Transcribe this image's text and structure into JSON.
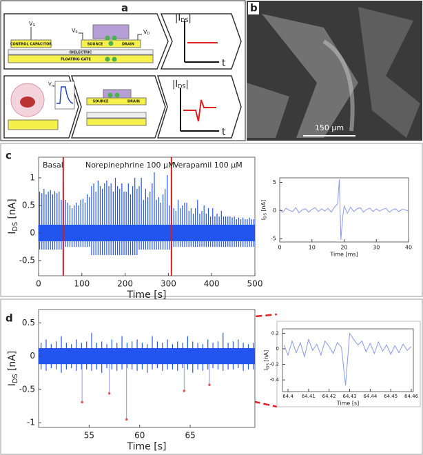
{
  "figure": {
    "panel_labels": [
      "a",
      "b",
      "c",
      "d"
    ],
    "diagram": {
      "vg": {
        "v": "V",
        "sub": "G"
      },
      "vs": {
        "v": "V",
        "sub": "S"
      },
      "vd": {
        "v": "V",
        "sub": "D"
      },
      "vm": {
        "v": "V",
        "sub": "m"
      },
      "control_capacitor": "CONTROL CAPACITOR",
      "dielectric": "DIELECTRIC",
      "floating_gate": "FLOATING GATE",
      "source": "SOURCE",
      "drain": "DRAIN",
      "ids": {
        "v": "|I",
        "sub": "DS",
        "end": "|"
      },
      "t": "t"
    },
    "scale_bar": "150 µm"
  },
  "chart_data": [
    {
      "type": "range",
      "color": "#2255ee",
      "x": [
        2.5,
        7.5,
        12.5,
        17.5,
        22.5,
        27.5,
        32.5,
        37.5,
        42.5,
        47.5,
        52.5,
        57.5,
        62.5,
        67.5,
        72.5,
        77.5,
        82.5,
        87.5,
        92.5,
        97.5,
        102.5,
        107.5,
        112.5,
        117.5,
        122.5,
        127.5,
        132.5,
        137.5,
        142.5,
        147.5,
        152.5,
        157.5,
        162.5,
        167.5,
        172.5,
        177.5,
        182.5,
        187.5,
        192.5,
        197.5,
        202.5,
        207.5,
        212.5,
        217.5,
        222.5,
        227.5,
        232.5,
        237.5,
        242.5,
        247.5,
        252.5,
        257.5,
        262.5,
        267.5,
        272.5,
        277.5,
        282.5,
        287.5,
        292.5,
        297.5,
        302.5,
        307.5,
        312.5,
        317.5,
        322.5,
        327.5,
        332.5,
        337.5,
        342.5,
        347.5,
        352.5,
        357.5,
        362.5,
        367.5,
        372.5,
        377.5,
        382.5,
        387.5,
        392.5,
        397.5,
        402.5,
        407.5,
        412.5,
        417.5,
        422.5,
        427.5,
        432.5,
        437.5,
        442.5,
        447.5,
        452.5,
        457.5,
        462.5,
        467.5,
        472.5,
        477.5,
        482.5,
        487.5,
        492.5,
        497.5
      ],
      "high": [
        0.75,
        0.72,
        0.8,
        0.7,
        0.75,
        0.78,
        0.7,
        0.76,
        0.72,
        0.75,
        0.6,
        0.9,
        0.6,
        0.55,
        0.5,
        0.45,
        0.5,
        0.55,
        0.5,
        0.6,
        0.62,
        0.55,
        0.7,
        0.65,
        0.85,
        0.9,
        0.75,
        0.95,
        0.85,
        0.8,
        0.9,
        0.95,
        0.85,
        0.9,
        0.75,
        1.0,
        0.85,
        0.8,
        0.9,
        0.75,
        0.75,
        0.9,
        0.7,
        0.85,
        1.0,
        0.8,
        0.85,
        1.0,
        0.6,
        0.8,
        0.65,
        0.75,
        0.9,
        1.1,
        0.6,
        0.65,
        0.55,
        0.7,
        0.8,
        1.05,
        0.5,
        1.2,
        0.45,
        0.4,
        0.6,
        0.45,
        0.5,
        0.55,
        0.55,
        0.4,
        0.45,
        0.35,
        0.45,
        0.6,
        0.35,
        0.4,
        0.5,
        0.35,
        0.45,
        0.3,
        0.45,
        0.3,
        0.35,
        0.3,
        0.4,
        0.3,
        0.3,
        0.3,
        0.3,
        0.28,
        0.3,
        0.25,
        0.28,
        0.25,
        0.28,
        0.25,
        0.25,
        0.28,
        0.25,
        0.25
      ],
      "low": [
        -0.3,
        -0.3,
        -0.3,
        -0.3,
        -0.3,
        -0.3,
        -0.3,
        -0.3,
        -0.3,
        -0.3,
        -0.3,
        -0.75,
        -0.25,
        -0.25,
        -0.25,
        -0.25,
        -0.25,
        -0.25,
        -0.25,
        -0.25,
        -0.25,
        -0.25,
        -0.25,
        -0.25,
        -0.4,
        -0.4,
        -0.4,
        -0.4,
        -0.4,
        -0.4,
        -0.4,
        -0.4,
        -0.4,
        -0.4,
        -0.4,
        -0.4,
        -0.4,
        -0.4,
        -0.4,
        -0.4,
        -0.4,
        -0.4,
        -0.4,
        -0.4,
        -0.4,
        -0.4,
        -0.3,
        -0.3,
        -0.3,
        -0.3,
        -0.3,
        -0.3,
        -0.3,
        -0.3,
        -0.3,
        -0.3,
        -0.3,
        -0.3,
        -0.3,
        -0.3,
        -0.3,
        -0.5,
        -0.25,
        -0.25,
        -0.25,
        -0.25,
        -0.25,
        -0.25,
        -0.25,
        -0.25,
        -0.25,
        -0.25,
        -0.25,
        -0.25,
        -0.25,
        -0.25,
        -0.25,
        -0.25,
        -0.25,
        -0.25,
        -0.25,
        -0.25,
        -0.25,
        -0.25,
        -0.25,
        -0.25,
        -0.25,
        -0.25,
        -0.25,
        -0.25,
        -0.25,
        -0.25,
        -0.25,
        -0.25,
        -0.25,
        -0.25,
        -0.25,
        -0.25,
        -0.25,
        -0.25
      ],
      "noise_band": [
        -0.15,
        0.15
      ],
      "vlines": {
        "x": [
          57,
          307
        ],
        "color": "#cc2222"
      },
      "annotations": [
        "Basal",
        "Norepinephrine 100 µM",
        "Verapamil 100 µM"
      ],
      "xlim": [
        0,
        500
      ],
      "ylim": [
        -0.775,
        1.375
      ],
      "xticks": [
        0,
        100,
        200,
        300,
        400,
        500
      ],
      "yticks": [
        -0.5,
        0,
        0.5,
        1
      ],
      "xlabel": "Time [s]",
      "ylabel": {
        "text": "I",
        "sub": "DS",
        "unit": "[nA]"
      }
    },
    {
      "type": "line",
      "color": "#8899ee",
      "x": [
        0,
        1,
        2,
        3,
        4,
        5,
        6,
        7,
        8,
        9,
        10,
        11,
        12,
        13,
        14,
        15,
        16,
        17,
        18,
        18.5,
        19,
        19.5,
        20,
        21,
        22,
        23,
        24,
        25,
        26,
        27,
        28,
        29,
        30,
        31,
        32,
        33,
        34,
        35,
        36,
        37,
        38,
        39,
        40
      ],
      "values": [
        0.2,
        -0.3,
        0.4,
        0,
        -0.2,
        0.5,
        -0.4,
        0.1,
        0.3,
        -0.3,
        0.2,
        0.5,
        -0.2,
        0.3,
        -0.1,
        0.4,
        -0.3,
        0.6,
        1.2,
        5.5,
        -5.2,
        -1.5,
        0.8,
        -0.5,
        0.6,
        -0.2,
        0.3,
        0.5,
        -0.3,
        0.2,
        0.4,
        -0.2,
        0.3,
        -0.1,
        0.2,
        0.4,
        -0.3,
        0.1,
        0.3,
        -0.2,
        0.2,
        0.1,
        -0.1
      ],
      "xlim": [
        0,
        40
      ],
      "ylim": [
        -5.6,
        5.8
      ],
      "xticks": [
        0,
        10,
        20,
        30,
        40
      ],
      "yticks": [
        -5,
        0,
        5
      ],
      "xlabel": "Time [ms]",
      "ylabel": {
        "text": "I",
        "sub": "DS",
        "unit": "[nA]"
      }
    },
    {
      "type": "range",
      "color": "#2255ee",
      "x": [
        50.25,
        50.75,
        51.25,
        51.75,
        52.25,
        52.75,
        53.25,
        53.75,
        54.25,
        54.75,
        55.25,
        55.75,
        56.25,
        56.75,
        57.25,
        57.75,
        58.25,
        58.75,
        59.25,
        59.75,
        60.25,
        60.75,
        61.25,
        61.75,
        62.25,
        62.75,
        63.25,
        63.75,
        64.25,
        64.75,
        65.25,
        65.75,
        66.25,
        66.75,
        67.25,
        67.75,
        68.25,
        68.75,
        69.25,
        69.75,
        70.25,
        70.75,
        71.25
      ],
      "high": [
        0.2,
        0.25,
        0.18,
        0.22,
        0.3,
        0.2,
        0.18,
        0.25,
        0.2,
        0.22,
        0.35,
        0.2,
        0.22,
        0.18,
        0.25,
        0.2,
        0.3,
        0.2,
        0.22,
        0.25,
        0.2,
        0.18,
        0.3,
        0.22,
        0.2,
        0.25,
        0.18,
        0.22,
        0.2,
        0.3,
        0.22,
        0.2,
        0.18,
        0.25,
        0.2,
        0.22,
        0.35,
        0.2,
        0.22,
        0.25,
        0.2,
        0.18,
        0.2
      ],
      "low": [
        -0.2,
        -0.22,
        -0.18,
        -0.2,
        -0.25,
        -0.2,
        -0.18,
        -0.22,
        -0.2,
        -0.2,
        -0.22,
        -0.2,
        -0.25,
        -0.18,
        -0.2,
        -0.22,
        -0.2,
        -0.18,
        -0.2,
        -0.22,
        -0.2,
        -0.25,
        -0.2,
        -0.18,
        -0.22,
        -0.2,
        -0.2,
        -0.22,
        -0.18,
        -0.2,
        -0.25,
        -0.2,
        -0.22,
        -0.2,
        -0.18,
        -0.2,
        -0.22,
        -0.2,
        -0.2,
        -0.18,
        -0.22,
        -0.2,
        -0.2
      ],
      "noise_band": [
        -0.12,
        0.12
      ],
      "events": {
        "x": [
          54.3,
          57.0,
          58.7,
          64.4,
          66.9
        ],
        "values": [
          -0.69,
          -0.56,
          -0.95,
          -0.52,
          -0.43
        ],
        "color": "#e05a5a"
      },
      "xlim": [
        50,
        71.4
      ],
      "ylim": [
        -1.07,
        0.7
      ],
      "xticks": [
        55,
        60,
        65
      ],
      "yticks": [
        -1,
        -0.5,
        0,
        0.5
      ],
      "xlabel": "Time [s]",
      "ylabel": {
        "text": "I",
        "sub": "DS",
        "unit": "[nA]"
      }
    },
    {
      "type": "line",
      "color": "#8899ee",
      "x": [
        64.398,
        64.4,
        64.402,
        64.404,
        64.406,
        64.408,
        64.41,
        64.412,
        64.414,
        64.416,
        64.418,
        64.42,
        64.422,
        64.424,
        64.426,
        64.428,
        64.43,
        64.432,
        64.434,
        64.436,
        64.438,
        64.44,
        64.442,
        64.444,
        64.446,
        64.448,
        64.45,
        64.452,
        64.454,
        64.456,
        64.458,
        64.46
      ],
      "values": [
        0.05,
        -0.08,
        0.1,
        -0.05,
        0.08,
        -0.1,
        0.12,
        -0.02,
        0.06,
        -0.08,
        0.1,
        0.03,
        -0.06,
        0.08,
        0.02,
        -0.47,
        0.2,
        0.12,
        0.05,
        0.1,
        -0.04,
        0.07,
        -0.06,
        0.09,
        -0.03,
        0.05,
        -0.07,
        0.04,
        -0.05,
        0.06,
        -0.02,
        0.03
      ],
      "xlim": [
        64.3973,
        64.461
      ],
      "ylim": [
        -0.55,
        0.257
      ],
      "xticks": [
        64.4,
        64.41,
        64.42,
        64.43,
        64.44,
        64.45,
        64.46
      ],
      "yticks": [
        -0.4,
        -0.2,
        0,
        0.2
      ],
      "xlabel": "Time [s]",
      "ylabel": {
        "text": "I",
        "sub": "DS",
        "unit": "[nA]"
      }
    }
  ]
}
